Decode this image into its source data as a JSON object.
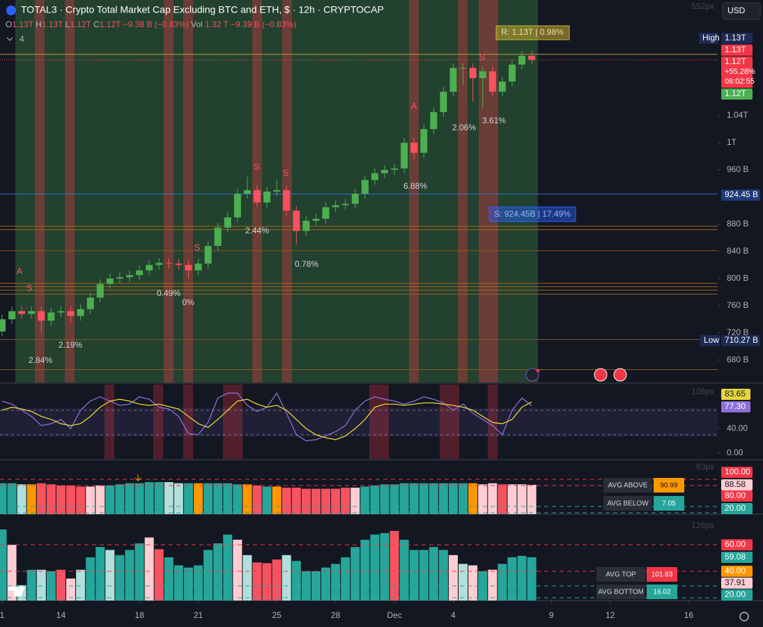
{
  "header": {
    "title": "TOTAL3 · Crypto Total Market Cap Excluding BTC and ETH, $ · 12h · CRYPTOCAP",
    "ohlc": [
      [
        "O",
        "1.13T"
      ],
      [
        "H",
        "1.13T"
      ],
      [
        "L",
        "1.12T"
      ],
      [
        "C",
        "1.12T"
      ]
    ],
    "change": "−9.38 B (−0.83%)",
    "vol_label": "Vol",
    "vol": "1.32 T",
    "vol_change": "−9.39 B (−0.83%)",
    "indicators": "4",
    "currency": "USD",
    "pane_heights": [
      "552px",
      "108px",
      "83px",
      "126px"
    ]
  },
  "ui": {
    "high_label": "High",
    "high_value": "1.13T",
    "low_label": "Low",
    "low_value": "710.27 B",
    "last_high": "1.13T",
    "last_price": "1.12T",
    "last_change": "+55.28%",
    "countdown": "06:02:55",
    "ma_price": "1.12T",
    "support_price": "924.45 B",
    "resistance": "R: 1.13T | 0.98%",
    "support": "S: 924.45B | 17.49%",
    "signals": [
      "A",
      "S",
      "S",
      "S",
      "S",
      "A",
      "S"
    ],
    "percents": [
      "2.84%",
      "2.19%",
      "0.49%",
      "0%",
      "2.44%",
      "0.78%",
      "6.88%",
      "2.06%",
      "3.61%"
    ]
  },
  "chart_data": [
    {
      "type": "candlestick",
      "xlim": [
        -0.107,
        36.48
      ],
      "xticks": [
        {
          "value": 0,
          "label": "1"
        },
        {
          "value": 3,
          "label": "14"
        },
        {
          "value": 7,
          "label": "18"
        },
        {
          "value": 10,
          "label": "21"
        },
        {
          "value": 14,
          "label": "25"
        },
        {
          "value": 17,
          "label": "28"
        },
        {
          "value": 20,
          "label": "Dec"
        },
        {
          "value": 23,
          "label": "4"
        },
        {
          "value": 28,
          "label": "9"
        },
        {
          "value": 31,
          "label": "12"
        },
        {
          "value": 35,
          "label": "16"
        }
      ],
      "ylim": [
        646,
        1210
      ],
      "yticks": [
        {
          "value": 680,
          "label": "680 B"
        },
        {
          "value": 720,
          "label": "720 B"
        },
        {
          "value": 760,
          "label": "760 B"
        },
        {
          "value": 800,
          "label": "800 B"
        },
        {
          "value": 840,
          "label": "840 B"
        },
        {
          "value": 880,
          "label": "880 B"
        },
        {
          "value": 960,
          "label": "960 B"
        },
        {
          "value": 1000,
          "label": "1T"
        },
        {
          "value": 1040,
          "label": "1.04T"
        }
      ],
      "up_color": "#4caf50",
      "down_color": "#f7525f",
      "open": [
        722,
        740,
        752,
        748,
        752,
        738,
        750,
        752,
        745,
        755,
        772,
        792,
        800,
        802,
        805,
        812,
        820,
        823,
        822,
        820,
        812,
        822,
        848,
        875,
        890,
        925,
        930,
        912,
        928,
        930,
        900,
        870,
        885,
        888,
        905,
        908,
        910,
        925,
        945,
        955,
        960,
        962,
        1000,
        985,
        1020,
        1045,
        1075,
        1110,
        1110,
        1095,
        1105,
        1075,
        1090,
        1115,
        1128
      ],
      "high": [
        747,
        759,
        759,
        759,
        759,
        757,
        759,
        759,
        762,
        779,
        799,
        807,
        809,
        812,
        819,
        827,
        830,
        830,
        829,
        827,
        829,
        855,
        882,
        897,
        932,
        950,
        937,
        935,
        945,
        937,
        907,
        892,
        895,
        912,
        915,
        917,
        932,
        952,
        962,
        967,
        969,
        1007,
        1007,
        1027,
        1052,
        1082,
        1117,
        1117,
        1117,
        1112,
        1112,
        1097,
        1122,
        1135,
        1135
      ],
      "low": [
        715,
        733,
        741,
        741,
        720,
        731,
        743,
        735,
        738,
        748,
        765,
        785,
        793,
        795,
        798,
        805,
        813,
        815,
        813,
        800,
        805,
        815,
        841,
        868,
        883,
        918,
        905,
        905,
        921,
        893,
        850,
        863,
        878,
        881,
        898,
        901,
        903,
        918,
        938,
        948,
        953,
        955,
        975,
        978,
        1013,
        1038,
        1068,
        1085,
        1060,
        1050,
        1068,
        1068,
        1083,
        1108,
        1115
      ],
      "close": [
        740,
        752,
        748,
        752,
        738,
        750,
        752,
        745,
        755,
        772,
        792,
        800,
        802,
        805,
        812,
        820,
        823,
        822,
        820,
        812,
        822,
        848,
        875,
        890,
        925,
        930,
        912,
        928,
        930,
        900,
        870,
        885,
        888,
        905,
        908,
        910,
        925,
        945,
        955,
        960,
        962,
        1000,
        985,
        1020,
        1045,
        1075,
        1110,
        1110,
        1095,
        1105,
        1075,
        1090,
        1115,
        1128,
        1122
      ],
      "levels": [
        {
          "value": 1130,
          "color": "#b8a23a"
        },
        {
          "value": 924.45,
          "color": "#2f6fd6"
        },
        {
          "value": 877,
          "color": "#a0651f"
        },
        {
          "value": 872,
          "color": "#a0651f"
        },
        {
          "value": 841,
          "color": "#8a5a1f"
        },
        {
          "value": 793,
          "color": "#a0651f"
        },
        {
          "value": 788,
          "color": "#a0651f"
        },
        {
          "value": 783,
          "color": "#a0651f"
        },
        {
          "value": 777,
          "color": "#a0651f"
        },
        {
          "value": 710.27,
          "color": "#8a5a1f"
        },
        {
          "value": 666,
          "color": "#8a5a1f"
        }
      ]
    },
    {
      "type": "line",
      "ylim": [
        -11,
        112
      ],
      "yticks": [
        {
          "value": 0,
          "label": "0.00"
        },
        {
          "value": 40,
          "label": "40.00"
        }
      ],
      "levels": [
        70,
        30
      ],
      "series": [
        {
          "color": "#e8d53a",
          "values": [
            70,
            75,
            72,
            68,
            60,
            55,
            48,
            45,
            48,
            60,
            75,
            85,
            88,
            85,
            80,
            78,
            80,
            76,
            72,
            60,
            48,
            42,
            55,
            70,
            85,
            88,
            80,
            75,
            78,
            70,
            55,
            40,
            30,
            25,
            22,
            28,
            40,
            55,
            75,
            80,
            80,
            78,
            80,
            82,
            82,
            80,
            78,
            75,
            70,
            60,
            50,
            48,
            55,
            75,
            83.65
          ]
        },
        {
          "color": "#8e6fd8",
          "values": [
            85,
            80,
            70,
            60,
            45,
            48,
            55,
            40,
            70,
            85,
            92,
            85,
            78,
            80,
            92,
            88,
            75,
            72,
            60,
            32,
            30,
            50,
            90,
            98,
            98,
            78,
            68,
            75,
            98,
            65,
            30,
            20,
            22,
            28,
            35,
            45,
            70,
            85,
            92,
            88,
            85,
            80,
            85,
            92,
            88,
            82,
            70,
            80,
            65,
            55,
            45,
            30,
            70,
            90,
            77.3
          ],
          "value_labels": [
            null,
            null,
            null,
            null,
            null,
            null,
            null,
            null,
            null,
            null,
            null,
            null,
            null,
            null,
            null,
            null,
            null,
            null,
            null,
            null,
            null,
            null,
            null,
            null,
            null,
            null,
            null,
            null,
            null,
            null,
            null,
            null,
            null,
            null,
            null,
            null,
            null,
            null,
            null,
            null,
            null,
            null,
            null,
            null,
            null,
            null,
            null,
            null,
            null,
            null,
            null,
            null,
            null,
            null,
            "77.30"
          ]
        }
      ]
    },
    {
      "type": "bar",
      "ylim": [
        62,
        110
      ],
      "yticks": [
        {
          "value": 100,
          "label": "100.00"
        },
        {
          "value": 80,
          "label": "80.00"
        },
        {
          "value": 20,
          "label": "20.00"
        }
      ],
      "avg_above_label": "AVG ABOVE",
      "avg_above": 90.99,
      "avg_below_label": "AVG BELOW",
      "avg_below": 7.05,
      "values": [
        90,
        90,
        89,
        89,
        90,
        89,
        88,
        88,
        87,
        87,
        88,
        88,
        89,
        90,
        90,
        91,
        91,
        91,
        90,
        90,
        90,
        90,
        90,
        90,
        89,
        89,
        88,
        87,
        87,
        86,
        86,
        85,
        85,
        85,
        85,
        86,
        86,
        87,
        88,
        89,
        89,
        90,
        90,
        90,
        90,
        90,
        90,
        90,
        90,
        89,
        90,
        89,
        89,
        89,
        88.58
      ],
      "colors": [
        "#26a69a",
        "#26a69a",
        "#b2dfdb",
        "#ff9800",
        "#f7525f",
        "#f7525f",
        "#f7525f",
        "#f7525f",
        "#f7525f",
        "#ffcdd2",
        "#ffcdd2",
        "#26a69a",
        "#26a69a",
        "#26a69a",
        "#26a69a",
        "#26a69a",
        "#26a69a",
        "#b2dfdb",
        "#b2dfdb",
        "#26a69a",
        "#ff9800",
        "#26a69a",
        "#26a69a",
        "#26a69a",
        "#26a69a",
        "#ff9800",
        "#f7525f",
        "#26a69a",
        "#ff9800",
        "#f7525f",
        "#f7525f",
        "#f7525f",
        "#f7525f",
        "#f7525f",
        "#f7525f",
        "#f7525f",
        "#ffcdd2",
        "#26a69a",
        "#26a69a",
        "#26a69a",
        "#26a69a",
        "#26a69a",
        "#26a69a",
        "#26a69a",
        "#26a69a",
        "#26a69a",
        "#26a69a",
        "#26a69a",
        "#ff9800",
        "#ffcdd2",
        "#ffcdd2",
        "#f7525f",
        "#ffcdd2",
        "#ffcdd2",
        "#ffcdd2"
      ]
    },
    {
      "type": "bar",
      "ylim": [
        0,
        116
      ],
      "yticks": [
        {
          "value": 60,
          "label": "60.00"
        },
        {
          "value": 40,
          "label": "40.00"
        },
        {
          "value": 20,
          "label": "20.00"
        }
      ],
      "extra_value": 37.91,
      "avg_top_label": "AVG TOP",
      "avg_top": 101.83,
      "avg_bottom_label": "AVG BOTTOM",
      "avg_bottom": 16.02,
      "values": [
        97,
        76,
        21,
        42,
        42,
        40,
        42,
        30,
        42,
        59,
        73,
        69,
        62,
        69,
        78,
        86,
        70,
        59,
        48,
        45,
        48,
        69,
        78,
        90,
        83,
        62,
        52,
        51,
        56,
        62,
        54,
        40,
        40,
        45,
        50,
        59,
        73,
        83,
        90,
        92,
        95,
        83,
        69,
        69,
        73,
        69,
        62,
        50,
        48,
        40,
        42,
        50,
        59,
        61,
        59.08
      ],
      "colors": [
        "#26a69a",
        "#ffcdd2",
        "#b2dfdb",
        "#26a69a",
        "#b2dfdb",
        "#26a69a",
        "#f7525f",
        "#ffcdd2",
        "#b2dfdb",
        "#26a69a",
        "#26a69a",
        "#b2dfdb",
        "#26a69a",
        "#26a69a",
        "#26a69a",
        "#ffcdd2",
        "#f7525f",
        "#26a69a",
        "#26a69a",
        "#26a69a",
        "#26a69a",
        "#26a69a",
        "#26a69a",
        "#26a69a",
        "#ffcdd2",
        "#b2dfdb",
        "#f7525f",
        "#f7525f",
        "#f7525f",
        "#b2dfdb",
        "#26a69a",
        "#26a69a",
        "#26a69a",
        "#26a69a",
        "#26a69a",
        "#26a69a",
        "#26a69a",
        "#26a69a",
        "#26a69a",
        "#26a69a",
        "#f7525f",
        "#26a69a",
        "#26a69a",
        "#26a69a",
        "#26a69a",
        "#26a69a",
        "#ffcdd2",
        "#b2dfdb",
        "#ffcdd2",
        "#26a69a",
        "#ffcdd2",
        "#26a69a",
        "#26a69a",
        "#26a69a",
        "#26a69a"
      ]
    }
  ]
}
